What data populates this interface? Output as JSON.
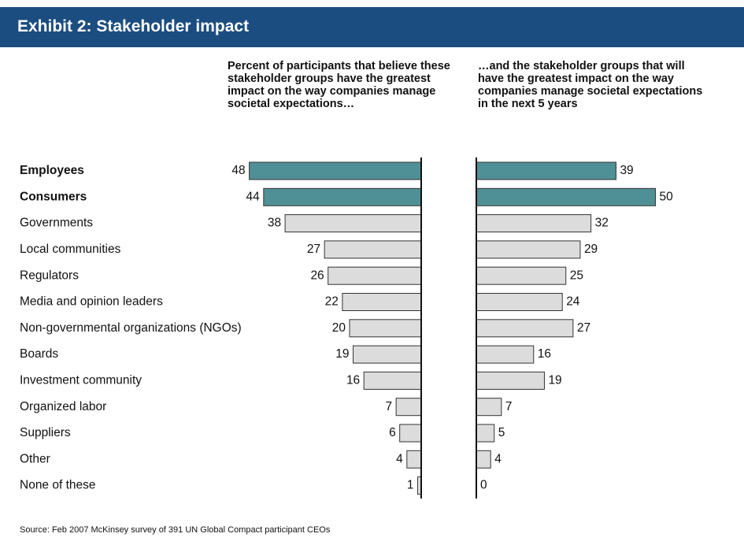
{
  "chart_data": {
    "type": "butterfly-bar",
    "title": "Exhibit 2: Stakeholder impact",
    "categories": [
      "Employees",
      "Consumers",
      "Governments",
      "Local communities",
      "Regulators",
      "Media and opinion leaders",
      "Non-governmental organizations (NGOs)",
      "Boards",
      "Investment community",
      "Organized labor",
      "Suppliers",
      "Other",
      "None of these"
    ],
    "category_bold": [
      true,
      true,
      false,
      false,
      false,
      false,
      false,
      false,
      false,
      false,
      false,
      false,
      false
    ],
    "series": [
      {
        "name": "Percent of participants that believe these stakeholder groups have the greatest impact on the way companies manage societal expectations…",
        "values": [
          48,
          44,
          38,
          27,
          26,
          22,
          20,
          19,
          16,
          7,
          6,
          4,
          1
        ],
        "colors": [
          "#4f9096",
          "#4f9096",
          "#dcdcdc",
          "#dcdcdc",
          "#dcdcdc",
          "#dcdcdc",
          "#dcdcdc",
          "#dcdcdc",
          "#dcdcdc",
          "#dcdcdc",
          "#dcdcdc",
          "#dcdcdc",
          "#dcdcdc"
        ]
      },
      {
        "name": "…and the stakeholder groups that will have the greatest impact on the way companies manage societal expectations in the next 5 years",
        "values": [
          39,
          50,
          32,
          29,
          25,
          24,
          27,
          16,
          19,
          7,
          5,
          4,
          0
        ],
        "colors": [
          "#4f9096",
          "#4f9096",
          "#dcdcdc",
          "#dcdcdc",
          "#dcdcdc",
          "#dcdcdc",
          "#dcdcdc",
          "#dcdcdc",
          "#dcdcdc",
          "#dcdcdc",
          "#dcdcdc",
          "#dcdcdc",
          "#dcdcdc"
        ]
      }
    ],
    "source": "Source: Feb 2007 McKinsey survey of 391 UN Global Compact participant CEOs"
  }
}
